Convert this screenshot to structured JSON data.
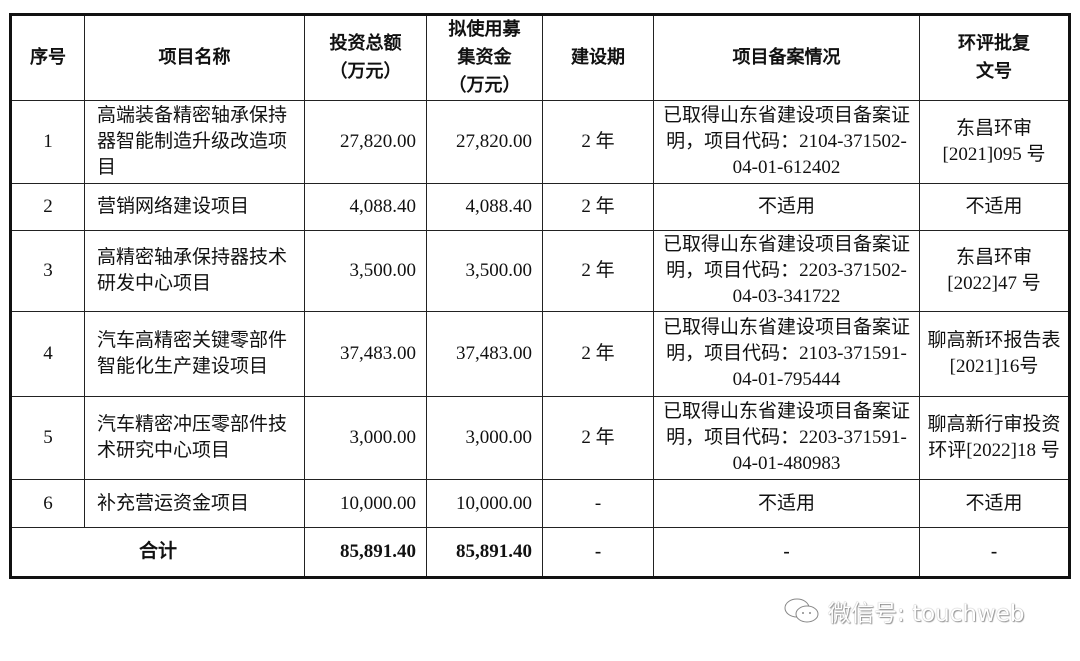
{
  "headers": [
    "序号",
    "项目名称",
    "投资总额\n（万元）",
    "拟使用募\n集资金\n（万元）",
    "建设期",
    "项目备案情况",
    "环评批复\n文号"
  ],
  "rows": [
    {
      "no": "1",
      "name": "高端装备精密轴承保持器智能制造升级改造项目",
      "total": "27,820.00",
      "raised": "27,820.00",
      "period": "2 年",
      "filing": "已取得山东省建设项目备案证明，项目代码：2104-371502-04-01-612402",
      "eia": "东昌环审[2021]095 号"
    },
    {
      "no": "2",
      "name": "营销网络建设项目",
      "total": "4,088.40",
      "raised": "4,088.40",
      "period": "2 年",
      "filing": "不适用",
      "eia": "不适用"
    },
    {
      "no": "3",
      "name": "高精密轴承保持器技术研发中心项目",
      "total": "3,500.00",
      "raised": "3,500.00",
      "period": "2 年",
      "filing": "已取得山东省建设项目备案证明，项目代码：2203-371502-04-03-341722",
      "eia": "东昌环审[2022]47 号"
    },
    {
      "no": "4",
      "name": "汽车高精密关键零部件智能化生产建设项目",
      "total": "37,483.00",
      "raised": "37,483.00",
      "period": "2 年",
      "filing": "已取得山东省建设项目备案证明，项目代码：2103-371591-04-01-795444",
      "eia": "聊高新环报告表[2021]16号"
    },
    {
      "no": "5",
      "name": "汽车精密冲压零部件技术研究中心项目",
      "total": "3,000.00",
      "raised": "3,000.00",
      "period": "2 年",
      "filing": "已取得山东省建设项目备案证明，项目代码：2203-371591-04-01-480983",
      "eia": "聊高新行审投资环评[2022]18 号"
    },
    {
      "no": "6",
      "name": "补充营运资金项目",
      "total": "10,000.00",
      "raised": "10,000.00",
      "period": "-",
      "filing": "不适用",
      "eia": "不适用"
    }
  ],
  "total_row": {
    "label": "合计",
    "total": "85,891.40",
    "raised": "85,891.40",
    "period": "-",
    "filing": "-",
    "eia": "-"
  },
  "watermark": {
    "icon": "wechat-icon",
    "text": "微信号: touchweb"
  }
}
